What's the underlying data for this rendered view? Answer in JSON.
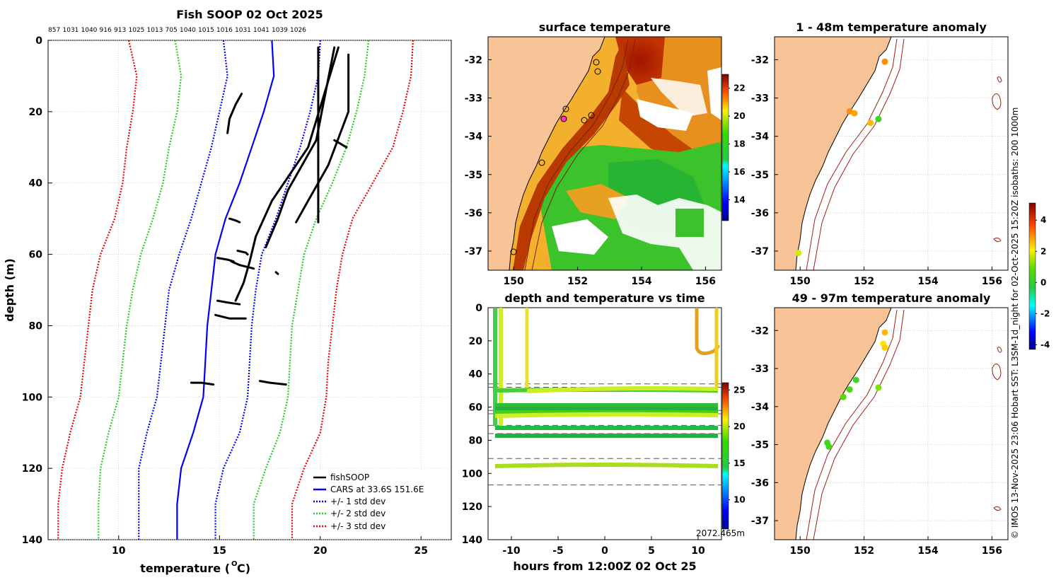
{
  "chart_data": [
    {
      "id": "profile",
      "type": "line",
      "title": "Fish SOOP 02 Oct 2025",
      "xlabel": "temperature (",
      "xlabel_unit": "O",
      "xlabel_tail": "C)",
      "ylabel": "depth (m)",
      "xlim": [
        6.5,
        26.5
      ],
      "ylim": [
        140,
        0
      ],
      "xticks": [
        10,
        15,
        20,
        25
      ],
      "yticks": [
        0,
        20,
        40,
        60,
        80,
        100,
        120,
        140
      ],
      "top_labels": [
        "857",
        "1031",
        "1040",
        "916",
        "913",
        "1025",
        "1013",
        "705",
        "1040",
        "1015",
        "1016",
        "1031",
        "1041",
        "1039",
        "1026"
      ],
      "legend": [
        "fishSOOP",
        "CARS at 33.6S 151.6E",
        "+/- 1 std dev",
        "+/- 2 std dev",
        "+/- 3 std dev"
      ],
      "colors": {
        "fish": "#000000",
        "cars": "#0000ff",
        "sd1": "#0000ff",
        "sd2": "#22cc22",
        "sd3": "#ee0000"
      },
      "series": [
        {
          "name": "CARS at 33.6S 151.6E",
          "depth": [
            0,
            10,
            20,
            30,
            40,
            50,
            60,
            70,
            80,
            90,
            100,
            110,
            120,
            130,
            140
          ],
          "temp": [
            17.6,
            17.7,
            17.2,
            16.6,
            16.0,
            15.3,
            14.8,
            14.6,
            14.4,
            14.3,
            14.2,
            13.7,
            13.1,
            12.9,
            12.9
          ]
        },
        {
          "name": "-1 std dev",
          "depth": [
            0,
            10,
            20,
            30,
            40,
            50,
            60,
            70,
            80,
            90,
            100,
            110,
            120,
            130,
            140
          ],
          "temp": [
            15.2,
            15.4,
            15.0,
            14.6,
            14.1,
            13.6,
            13.0,
            12.5,
            12.3,
            12.1,
            11.9,
            11.4,
            11.0,
            11.0,
            11.0
          ]
        },
        {
          "name": "+1 std dev",
          "depth": [
            0,
            10,
            20,
            30,
            40,
            50,
            60,
            70,
            80,
            90,
            100,
            110,
            120,
            130,
            140
          ],
          "temp": [
            20.0,
            19.9,
            19.5,
            19.0,
            18.4,
            17.8,
            17.1,
            16.8,
            16.6,
            16.5,
            16.4,
            16.0,
            15.2,
            14.8,
            14.8
          ]
        },
        {
          "name": "-2 std dev",
          "depth": [
            0,
            10,
            20,
            30,
            40,
            50,
            60,
            70,
            80,
            90,
            100,
            110,
            120,
            130,
            140
          ],
          "temp": [
            12.8,
            13.1,
            12.9,
            12.5,
            12.2,
            11.7,
            11.1,
            10.7,
            10.4,
            10.2,
            10.0,
            9.5,
            9.1,
            9.0,
            9.0
          ]
        },
        {
          "name": "+2 std dev",
          "depth": [
            0,
            10,
            20,
            30,
            40,
            50,
            60,
            70,
            80,
            90,
            100,
            110,
            120,
            130,
            140
          ],
          "temp": [
            22.4,
            22.2,
            21.8,
            21.3,
            20.6,
            19.8,
            19.2,
            18.9,
            18.6,
            18.5,
            18.4,
            18.0,
            17.3,
            16.7,
            16.7
          ]
        },
        {
          "name": "-3 std dev",
          "depth": [
            0,
            10,
            20,
            30,
            40,
            50,
            60,
            70,
            80,
            90,
            100,
            110,
            120,
            130,
            140
          ],
          "temp": [
            10.5,
            10.9,
            10.7,
            10.4,
            10.2,
            9.8,
            9.1,
            8.7,
            8.5,
            8.3,
            8.1,
            7.6,
            7.2,
            7.0,
            7.0
          ]
        },
        {
          "name": "+3 std dev",
          "depth": [
            0,
            10,
            20,
            30,
            40,
            50,
            60,
            70,
            80,
            90,
            100,
            110,
            120,
            130,
            140
          ],
          "temp": [
            24.6,
            24.5,
            24.1,
            23.6,
            22.6,
            21.6,
            21.1,
            20.8,
            20.6,
            20.4,
            20.3,
            20.0,
            19.2,
            18.6,
            18.6
          ]
        }
      ],
      "fish_traces": [
        {
          "depth": [
            15,
            18,
            22,
            26
          ],
          "temp": [
            16.1,
            15.8,
            15.5,
            15.4
          ]
        },
        {
          "depth": [
            2,
            30,
            45,
            55,
            62,
            68,
            73
          ],
          "temp": [
            20.9,
            19.4,
            17.6,
            16.8,
            16.5,
            16.2,
            15.8
          ]
        },
        {
          "depth": [
            2,
            28,
            42,
            50,
            58
          ],
          "temp": [
            20.7,
            19.8,
            18.4,
            17.9,
            17.3
          ]
        },
        {
          "depth": [
            4,
            20,
            35,
            45,
            51
          ],
          "temp": [
            21.4,
            21.4,
            20.4,
            19.4,
            18.8
          ]
        },
        {
          "depth": [
            2,
            51
          ],
          "temp": [
            19.9,
            19.9
          ]
        },
        {
          "depth": [
            50,
            50.5,
            51
          ],
          "temp": [
            15.5,
            15.8,
            16.0
          ]
        },
        {
          "depth": [
            59,
            59.5,
            60
          ],
          "temp": [
            15.9,
            16.3,
            16.4
          ]
        },
        {
          "depth": [
            61,
            61.5,
            62
          ],
          "temp": [
            14.9,
            15.4,
            15.7
          ]
        },
        {
          "depth": [
            62,
            63,
            64
          ],
          "temp": [
            15.6,
            16.0,
            16.7
          ]
        },
        {
          "depth": [
            73,
            73.5,
            74
          ],
          "temp": [
            14.9,
            15.4,
            16.0
          ]
        },
        {
          "depth": [
            77,
            78,
            78
          ],
          "temp": [
            14.8,
            15.5,
            16.3
          ]
        },
        {
          "depth": [
            96,
            96,
            96.5
          ],
          "temp": [
            13.6,
            14.1,
            14.7
          ]
        },
        {
          "depth": [
            95.5,
            96,
            96.5
          ],
          "temp": [
            17.0,
            17.5,
            18.3
          ]
        },
        {
          "depth": [
            28,
            29,
            30
          ],
          "temp": [
            20.7,
            21.0,
            21.3
          ]
        },
        {
          "depth": [
            65,
            65.5
          ],
          "temp": [
            17.8,
            17.9
          ]
        }
      ]
    },
    {
      "id": "sst_map",
      "type": "heatmap",
      "title": "surface temperature",
      "xlim": [
        149.2,
        156.5
      ],
      "ylim": [
        -37.5,
        -31.4
      ],
      "xticks": [
        150,
        152,
        154,
        156
      ],
      "yticks": [
        -32,
        -33,
        -34,
        -35,
        -36,
        -37
      ],
      "colorbar": {
        "min": 12.5,
        "max": 23,
        "ticks": [
          14,
          16,
          18,
          20,
          22
        ]
      }
    },
    {
      "id": "depth_time",
      "type": "scatter",
      "title": "depth and temperature vs time",
      "xlabel": "hours from 12:00Z 02 Oct 25",
      "xlim": [
        -12.5,
        12.5
      ],
      "ylim": [
        140,
        0
      ],
      "xticks": [
        -10,
        -5,
        0,
        5,
        10
      ],
      "yticks": [
        0,
        20,
        40,
        60,
        80,
        100,
        120,
        140
      ],
      "dashed_depths": [
        46,
        48,
        62,
        64,
        71,
        76,
        91,
        107
      ],
      "colorbar": {
        "min": 6,
        "max": 26,
        "ticks": [
          10,
          15,
          20,
          25
        ]
      },
      "annotation": "2072.465m"
    },
    {
      "id": "anom_shallow",
      "type": "scatter",
      "title": "1 - 48m temperature anomaly",
      "xlim": [
        149.2,
        156.5
      ],
      "ylim": [
        -37.5,
        -31.4
      ],
      "xticks": [
        150,
        152,
        154,
        156
      ],
      "yticks": [
        -32,
        -33,
        -34,
        -35,
        -36,
        -37
      ],
      "points": [
        {
          "lon": 152.65,
          "lat": -32.05,
          "anom": 3.0
        },
        {
          "lon": 151.55,
          "lat": -33.35,
          "anom": 3.0
        },
        {
          "lon": 151.7,
          "lat": -33.4,
          "anom": 2.8
        },
        {
          "lon": 152.45,
          "lat": -33.55,
          "anom": 0.3
        },
        {
          "lon": 152.2,
          "lat": -33.65,
          "anom": 2.6
        },
        {
          "lon": 149.95,
          "lat": -37.05,
          "anom": 1.8
        }
      ]
    },
    {
      "id": "anom_deep",
      "type": "scatter",
      "title": "49 - 97m temperature anomaly",
      "xlim": [
        149.2,
        156.5
      ],
      "ylim": [
        -37.5,
        -31.4
      ],
      "xticks": [
        150,
        152,
        154,
        156
      ],
      "yticks": [
        -32,
        -33,
        -34,
        -35,
        -36,
        -37
      ],
      "points": [
        {
          "lon": 152.65,
          "lat": -32.05,
          "anom": 2.6
        },
        {
          "lon": 152.6,
          "lat": -32.35,
          "anom": 2.2
        },
        {
          "lon": 152.65,
          "lat": -32.45,
          "anom": 2.4
        },
        {
          "lon": 151.75,
          "lat": -33.3,
          "anom": 0.3
        },
        {
          "lon": 151.55,
          "lat": -33.55,
          "anom": 0.6
        },
        {
          "lon": 151.35,
          "lat": -33.75,
          "anom": 0.8
        },
        {
          "lon": 152.45,
          "lat": -33.5,
          "anom": 1.2
        },
        {
          "lon": 150.85,
          "lat": -34.95,
          "anom": 0.5
        },
        {
          "lon": 150.9,
          "lat": -35.05,
          "anom": 0.4
        }
      ],
      "colorbar": {
        "min": -4.3,
        "max": 5.1,
        "ticks": [
          -4,
          -2,
          0,
          2,
          4
        ]
      }
    }
  ],
  "side_text": "© IMOS 13-Nov-2025 23:06 Hobart SST: L3SM-1d_night for 02-Oct-2025 15:20Z isobaths: 200  1000m"
}
